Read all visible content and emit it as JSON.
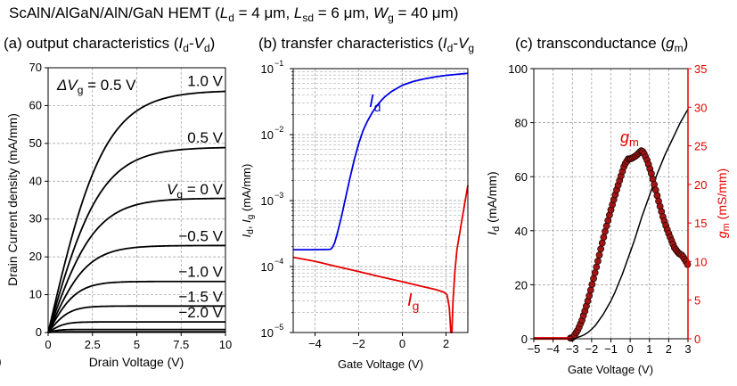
{
  "figure": {
    "title": {
      "prefix": "ScAlN/AlGaN/AlN/GaN HEMT (",
      "Ld_sym": "L",
      "Ld_sub": "d",
      "Ld_val": " = 4 μm, ",
      "Lsd_sym": "L",
      "Lsd_sub": "sd",
      "Lsd_val": " = 6 μm, ",
      "Wg_sym": "W",
      "Wg_sub": "g",
      "Wg_val": " = 40 μm)"
    },
    "panel_a_title": {
      "label": "(a) output characteristics (",
      "I": "I",
      "Isub": "d",
      "dash": "-",
      "V": "V",
      "Vsub": "d",
      "close": ")"
    },
    "panel_b_title": {
      "label": "(b) transfer characteristics (",
      "I": "I",
      "Isub": "d",
      "dash": "-",
      "V": "V",
      "Vsub": "g"
    },
    "panel_c_title": {
      "label": "(c) transconductance (",
      "g": "g",
      "gsub": "m",
      "close": ")"
    },
    "edge_fragment": ")"
  },
  "colors": {
    "black": "#000000",
    "blue": "#0000e6",
    "red": "#e60000",
    "marker_fill": "#a01414",
    "grid": "#999999"
  },
  "chart_data": [
    {
      "id": "a",
      "type": "line",
      "xlabel": "Drain Voltage (V)",
      "ylabel": "Drain Current density (mA/mm)",
      "xlim": [
        0,
        10
      ],
      "ylim": [
        0,
        70
      ],
      "xticks": [
        "0",
        "2.5",
        "5",
        "7.5",
        "10"
      ],
      "yticks": [
        "0",
        "10",
        "20",
        "30",
        "40",
        "50",
        "60",
        "70"
      ],
      "grid": true,
      "annotation": {
        "prefix": "ΔV",
        "sub": "g",
        "suffix": " = 0.5 V"
      },
      "vg_axis_label": {
        "sym": "V",
        "sub": "g",
        "suffix": " = 0 V"
      },
      "series": [
        {
          "label": "1.0 V",
          "isat": 64.0,
          "ron": 3.2
        },
        {
          "label": "0.5 V",
          "isat": 49.0,
          "ron": 3.0
        },
        {
          "label": "",
          "isat": 35.5,
          "ron": 2.7
        },
        {
          "label": "−0.5 V",
          "isat": 23.0,
          "ron": 2.2
        },
        {
          "label": "−1.0 V",
          "isat": 13.5,
          "ron": 1.6
        },
        {
          "label": "−1.5 V",
          "isat": 7.0,
          "ron": 1.2
        },
        {
          "label": "−2.0 V",
          "isat": 2.8,
          "ron": 0.9
        },
        {
          "label": "",
          "isat": 0.8,
          "ron": 0.6
        },
        {
          "label": "",
          "isat": 0.2,
          "ron": 0.5
        }
      ]
    },
    {
      "id": "b",
      "type": "line",
      "scale_y": "log",
      "xlabel": "Gate Voltage (V)",
      "ylabel": {
        "a": "I",
        "asub": "d",
        "mid": ", ",
        "b": "I",
        "bsub": "g",
        "tail": " (mA/mm)"
      },
      "xlim": [
        -5,
        3
      ],
      "ylim": [
        1e-05,
        0.1
      ],
      "xticks": [
        "−4",
        "−2",
        "0",
        "2"
      ],
      "yticks": [
        {
          "base": "10",
          "exp": "−5"
        },
        {
          "base": "10",
          "exp": "−4"
        },
        {
          "base": "10",
          "exp": "−3"
        },
        {
          "base": "10",
          "exp": "−2"
        },
        {
          "base": "10",
          "exp": "−1"
        }
      ],
      "grid": true,
      "series": [
        {
          "name": "I",
          "sub": "d",
          "color": "#0000e6",
          "x": [
            -5,
            -4,
            -3.3,
            -3.2,
            -3.1,
            -3.0,
            -2.8,
            -2.6,
            -2.4,
            -2.2,
            -2.0,
            -1.8,
            -1.6,
            -1.4,
            -1.2,
            -1.0,
            -0.8,
            -0.5,
            0,
            0.5,
            1,
            1.5,
            2,
            2.5,
            3
          ],
          "y": [
            0.00018,
            0.00018,
            0.000182,
            0.000195,
            0.00023,
            0.0003,
            0.00055,
            0.0011,
            0.0022,
            0.0042,
            0.0073,
            0.0115,
            0.016,
            0.021,
            0.0265,
            0.032,
            0.0375,
            0.045,
            0.056,
            0.064,
            0.07,
            0.075,
            0.079,
            0.082,
            0.085
          ]
        },
        {
          "name": "I",
          "sub": "g",
          "color": "#e60000",
          "x": [
            -5,
            -4,
            -3,
            -2,
            -1,
            0,
            1,
            1.5,
            1.9,
            2.05,
            2.15,
            2.22,
            2.27,
            2.32,
            2.4,
            2.5,
            2.7,
            3
          ],
          "y": [
            0.000138,
            0.00012,
            0.0001,
            8.4e-05,
            7e-05,
            5.9e-05,
            4.9e-05,
            4.5e-05,
            4.1e-05,
            3.7e-05,
            2.4e-05,
            1e-05,
            1e-05,
            3e-05,
            8e-05,
            0.00018,
            0.00045,
            0.0017
          ]
        }
      ]
    },
    {
      "id": "c",
      "type": "line",
      "xlabel": "Gate Voltage (V)",
      "ylabel_left": {
        "sym": "I",
        "sub": "d",
        "tail": " (mA/mm)"
      },
      "ylabel_right": {
        "sym": "g",
        "sub": "m",
        "tail": " (mS/mm)"
      },
      "xlim": [
        -5,
        3
      ],
      "ylim_left": [
        0,
        100
      ],
      "ylim_right": [
        0,
        35
      ],
      "xticks": [
        "−5",
        "−4",
        "−3",
        "−2",
        "−1",
        "0",
        "1",
        "2",
        "3"
      ],
      "yticks_left": [
        "0",
        "20",
        "40",
        "60",
        "80",
        "100"
      ],
      "yticks_right": [
        "0",
        "5",
        "10",
        "15",
        "20",
        "25",
        "30",
        "35"
      ],
      "grid": true,
      "gm_label": {
        "sym": "g",
        "sub": "m"
      },
      "series": [
        {
          "name": "Id",
          "axis": "left",
          "color": "#000000",
          "x": [
            -5,
            -3.5,
            -3,
            -2.8,
            -2.6,
            -2.4,
            -2.2,
            -2.0,
            -1.8,
            -1.6,
            -1.4,
            -1.2,
            -1.0,
            -0.8,
            -0.6,
            -0.4,
            -0.2,
            0,
            0.2,
            0.4,
            0.6,
            0.8,
            1.0,
            1.2,
            1.4,
            1.6,
            1.8,
            2.0,
            2.2,
            2.4,
            2.6,
            2.8,
            3.0
          ],
          "y": [
            0.1,
            0.1,
            0.2,
            0.4,
            0.8,
            1.4,
            2.3,
            3.5,
            5,
            7,
            9,
            11.5,
            14,
            17,
            20.5,
            24,
            28,
            32,
            36,
            40.5,
            45,
            49,
            53,
            57,
            61,
            64.5,
            68,
            71,
            74,
            77,
            80,
            82.5,
            85
          ]
        },
        {
          "name": "gm",
          "axis": "right",
          "color": "#e60000",
          "x": [
            -5,
            -4,
            -3.5,
            -3.0,
            -2.9,
            -2.7,
            -2.5,
            -2.3,
            -2.1,
            -1.9,
            -1.7,
            -1.5,
            -1.3,
            -1.1,
            -0.9,
            -0.7,
            -0.5,
            -0.3,
            -0.1,
            0.0,
            0.1,
            0.3,
            0.5,
            0.6,
            0.7,
            0.9,
            1.1,
            1.3,
            1.5,
            1.7,
            1.9,
            2.1,
            2.3,
            2.5,
            2.7,
            2.9,
            3.0
          ],
          "y": [
            0.05,
            0.05,
            0.05,
            0.1,
            0.4,
            1.2,
            2.4,
            4.0,
            5.8,
            7.8,
            9.8,
            11.9,
            13.9,
            15.8,
            17.6,
            19.3,
            20.9,
            22.5,
            23.3,
            23.3,
            23.4,
            23.7,
            24.2,
            24.4,
            24.1,
            23.0,
            21.4,
            19.5,
            17.6,
            15.8,
            14.3,
            13.0,
            11.8,
            11.1,
            10.8,
            10.0,
            9.5
          ]
        }
      ]
    }
  ]
}
